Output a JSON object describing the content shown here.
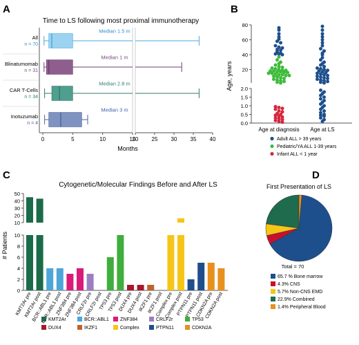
{
  "panels": {
    "A": {
      "letter": "A"
    },
    "B": {
      "letter": "B"
    },
    "C": {
      "letter": "C"
    },
    "D": {
      "letter": "D"
    }
  },
  "chart_data": [
    {
      "id": "A",
      "type": "box",
      "title": "Time to LS following most proximal immunotherapy",
      "xlabel": "Months",
      "x_ticks_left": [
        0,
        5,
        10,
        15
      ],
      "x_ticks_right": [
        20,
        25,
        30,
        35,
        40
      ],
      "axis_break": [
        15,
        20
      ],
      "series": [
        {
          "name": "All",
          "n_label": "n = 70",
          "min": 0.2,
          "q1": 1.0,
          "median": 1.5,
          "q3": 5.0,
          "max": 36.5,
          "median_label": "Median 1.5 m",
          "color": "#9bd3f0",
          "stroke": "#4aa8dc",
          "text_color": "#2f8fd0"
        },
        {
          "name": "Blinatumomab",
          "n_label": "n = 31",
          "min": 0.2,
          "q1": 0.6,
          "median": 1.0,
          "q3": 5.0,
          "max": 32.0,
          "median_label": "Median 1 m",
          "color": "#8e5f8e",
          "stroke": "#6d3f6d",
          "text_color": "#7a4a82"
        },
        {
          "name": "CAR T-Cells",
          "n_label": "n = 34",
          "min": 0.3,
          "q1": 1.5,
          "median": 2.8,
          "q3": 5.0,
          "max": 36.5,
          "median_label": "Median 2.8 m",
          "color": "#4f9e8e",
          "stroke": "#2f7a6a",
          "text_color": "#2f7f6e"
        },
        {
          "name": "Inotuzumab",
          "n_label": "n = 4",
          "min": 0.3,
          "q1": 1.0,
          "median": 3.0,
          "q3": 6.5,
          "max": 7.5,
          "median_label": "Median 3 m",
          "color": "#7f93c0",
          "stroke": "#4d6397",
          "text_color": "#3f63a8"
        }
      ]
    },
    {
      "id": "B",
      "type": "scatter",
      "ylabel": "Age, years",
      "y_ticks_upper": [
        20,
        40,
        60,
        80
      ],
      "y_ticks_lower": [
        0.0,
        0.5,
        1.0,
        1.5,
        2.0
      ],
      "categories": [
        "Age at diagnosis",
        "Age at LS"
      ],
      "legend": [
        {
          "label": "Adult ALL > 39 years",
          "color": "#1d4f8c"
        },
        {
          "label": "Pediatric/YA ALL 1-39 years",
          "color": "#3dbb3a"
        },
        {
          "label": "Infant ALL < 1 year",
          "color": "#d7263d"
        }
      ],
      "points": {
        "diagnosis_adult": [
          76,
          73,
          68,
          64,
          61,
          58,
          56,
          52,
          50,
          49,
          47,
          46,
          44,
          42,
          41,
          41,
          40
        ],
        "diagnosis_pediatric": [
          37,
          33,
          30,
          28,
          26,
          24,
          23,
          22,
          21,
          20,
          19,
          19,
          18,
          18,
          17,
          17,
          16,
          16,
          15,
          15,
          14,
          13,
          13,
          12,
          12,
          11,
          10,
          9,
          8,
          7,
          6,
          5,
          4,
          3,
          2
        ],
        "diagnosis_infant": [
          0.95,
          0.9,
          0.85,
          0.8,
          0.7,
          0.65,
          0.55,
          0.5,
          0.45,
          0.4,
          0.35,
          0.3,
          0.25,
          0.2,
          0.15,
          0.1,
          0.05
        ],
        "ls": [
          78,
          73,
          68,
          64,
          60,
          56,
          52,
          48,
          45,
          42,
          40,
          36,
          33,
          30,
          28,
          26,
          24,
          22,
          21,
          20,
          19,
          18,
          17,
          16,
          15,
          14,
          13,
          12,
          11,
          10,
          9,
          8,
          7,
          6,
          5,
          4,
          3,
          2,
          1.9,
          1.8,
          1.7,
          1.6,
          1.5,
          1.4,
          1.3,
          1.2,
          1.1,
          1.0,
          0.9,
          0.8,
          0.7,
          0.6,
          0.5,
          0.45,
          0.4,
          0.3,
          0.2,
          0.1
        ]
      }
    },
    {
      "id": "C",
      "type": "bar",
      "title": "Cytogenetic/Molecular Findings Before and After LS",
      "ylabel": "# Patients",
      "y_ticks_upper": [
        10,
        20,
        30,
        40,
        50
      ],
      "y_ticks_lower": [
        0,
        2,
        4,
        6,
        8,
        10
      ],
      "categories": [
        "KMT2Ar pre",
        "KMT2Ar post",
        "BCR::ABL1 pre",
        "BCR::ABL1 post",
        "ZNF384 pre",
        "ZNF384 post",
        "CRLF2r pre",
        "CRLF2r post",
        "TP53 pre",
        "TP53 post",
        "DUX4 pre",
        "DUX4 post",
        "IKZF1 pre",
        "IKZF1 post",
        "Complex pre",
        "Complex post",
        "PTPN11 pre",
        "PTPN11 post",
        "CDKN2A pre",
        "CDKN2A post"
      ],
      "values": [
        45,
        43,
        4,
        4,
        3,
        4,
        3,
        0,
        6,
        10,
        1,
        1,
        1,
        0,
        10,
        16,
        2,
        5,
        5,
        4
      ],
      "bar_colors": [
        "#1a6b4a",
        "#1a6b4a",
        "#4da6d9",
        "#4da6d9",
        "#d81b7a",
        "#d81b7a",
        "#9b7fc0",
        "#9b7fc0",
        "#3fae3c",
        "#3fae3c",
        "#a8172e",
        "#a8172e",
        "#c0622c",
        "#c0622c",
        "#f5c518",
        "#f5c518",
        "#1f4e8a",
        "#1f4e8a",
        "#e8901e",
        "#e8901e"
      ],
      "legend": [
        {
          "label": "KMT2Ar",
          "color": "#1a6b4a"
        },
        {
          "label": "BCR::ABL1",
          "color": "#4da6d9"
        },
        {
          "label": "ZNF384",
          "color": "#d81b7a"
        },
        {
          "label": "CRLF2r",
          "color": "#9b7fc0"
        },
        {
          "label": "TP53",
          "color": "#3fae3c"
        },
        {
          "label": "DUX4",
          "color": "#a8172e"
        },
        {
          "label": "IKZF1",
          "color": "#c0622c"
        },
        {
          "label": "Complex",
          "color": "#f5c518"
        },
        {
          "label": "PTPN11",
          "color": "#1f4e8a"
        },
        {
          "label": "CDKN2A",
          "color": "#e8901e"
        }
      ]
    },
    {
      "id": "D",
      "type": "pie",
      "title": "First Presentation of LS",
      "total_label": "Total = 70",
      "slices": [
        {
          "label": "65.7 % Bone marrow",
          "value": 65.7,
          "color": "#1d4f8c"
        },
        {
          "label": "4.3% CNS",
          "value": 4.3,
          "color": "#c8102e"
        },
        {
          "label": "5.7% Non-CNS EMD",
          "value": 5.7,
          "color": "#f5c518"
        },
        {
          "label": "22.9% Combined",
          "value": 22.9,
          "color": "#1f6b4e"
        },
        {
          "label": "1.4% Peripheral Blood",
          "value": 1.4,
          "color": "#e8901e"
        }
      ]
    }
  ]
}
